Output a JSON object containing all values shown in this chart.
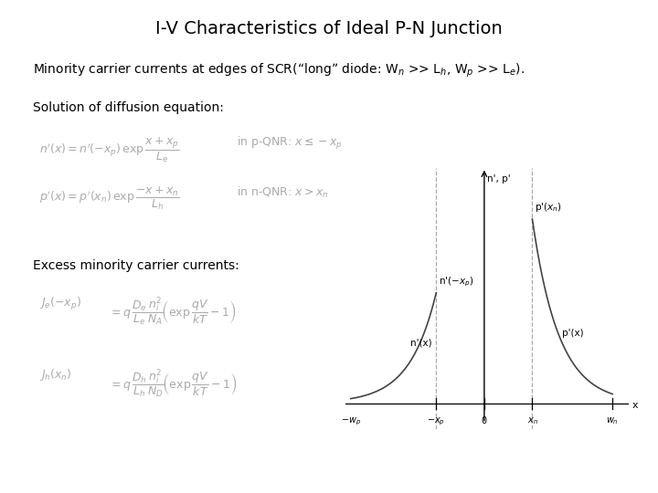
{
  "title": "I-V Characteristics of Ideal P-N Junction",
  "subtitle": "Minority carrier currents at edges of SCR(“long” diode: W$_n$ >> L$_h$, W$_p$ >> L$_e$).",
  "solution_label": "Solution of diffusion equation:",
  "excess_label": "Excess minority carrier currents:",
  "bg_color": "#ffffff",
  "text_color": "#000000",
  "formula_color": "#aaaaaa",
  "curve_color": "#444444",
  "dashed_color": "#aaaaaa",
  "xp": -1.8,
  "xn": 1.8,
  "wp": -5.0,
  "wn": 4.8,
  "Le": 1.0,
  "Lh": 1.0,
  "np_xp": 1.2,
  "p_xn": 2.0,
  "title_fontsize": 14,
  "body_fontsize": 10,
  "eq_fontsize": 9
}
